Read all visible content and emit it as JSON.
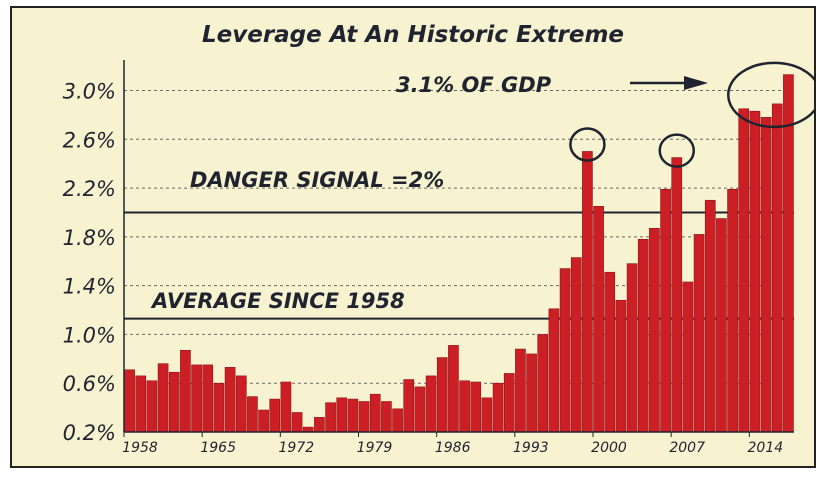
{
  "chart_data": {
    "type": "bar",
    "title": "Leverage At An Historic Extreme",
    "xlabel": "",
    "ylabel": "",
    "ylim": [
      0.2,
      3.25
    ],
    "y_ticks": [
      "3.0%",
      "2.6%",
      "2.2%",
      "1.8%",
      "1.4%",
      "1.0%",
      "0.6%",
      "0.2%"
    ],
    "y_tick_values": [
      3.0,
      2.6,
      2.2,
      1.8,
      1.4,
      1.0,
      0.6,
      0.2
    ],
    "x_ticks": [
      "1958",
      "1965",
      "1972",
      "1979",
      "1986",
      "1993",
      "2000",
      "2007",
      "2014"
    ],
    "x_tick_values": [
      1958,
      1965,
      1972,
      1979,
      1986,
      1993,
      2000,
      2007,
      2014
    ],
    "grid": "horizontal dashed",
    "bar_color": "#cc1f25",
    "categories": [
      1958,
      1959,
      1960,
      1961,
      1962,
      1963,
      1964,
      1965,
      1966,
      1967,
      1968,
      1969,
      1970,
      1971,
      1972,
      1973,
      1974,
      1975,
      1976,
      1977,
      1978,
      1979,
      1980,
      1981,
      1982,
      1983,
      1984,
      1985,
      1986,
      1987,
      1988,
      1989,
      1990,
      1991,
      1992,
      1993,
      1994,
      1995,
      1996,
      1997,
      1998,
      1999,
      2000,
      2001,
      2002,
      2003,
      2004,
      2005,
      2006,
      2007,
      2008,
      2009,
      2010,
      2011,
      2012,
      2013,
      2014,
      2015,
      2016,
      2017
    ],
    "values": [
      0.71,
      0.66,
      0.62,
      0.76,
      0.69,
      0.87,
      0.75,
      0.75,
      0.6,
      0.73,
      0.66,
      0.49,
      0.38,
      0.47,
      0.61,
      0.36,
      0.24,
      0.32,
      0.44,
      0.48,
      0.47,
      0.45,
      0.51,
      0.45,
      0.39,
      0.63,
      0.57,
      0.66,
      0.81,
      0.91,
      0.62,
      0.61,
      0.48,
      0.6,
      0.68,
      0.88,
      0.84,
      1.0,
      1.21,
      1.54,
      1.63,
      2.5,
      2.05,
      1.51,
      1.28,
      1.58,
      1.78,
      1.87,
      2.19,
      2.45,
      1.43,
      1.82,
      2.1,
      1.95,
      2.19,
      2.85,
      2.83,
      2.78,
      2.89,
      3.13
    ],
    "annotations": [
      {
        "text": "3.1% OF GDP"
      },
      {
        "text": "DANGER SIGNAL =2%",
        "y": 2.0
      },
      {
        "text": "AVERAGE SINCE 1958",
        "y": 1.13
      }
    ],
    "circled_years": [
      1999,
      2007,
      2016
    ]
  }
}
